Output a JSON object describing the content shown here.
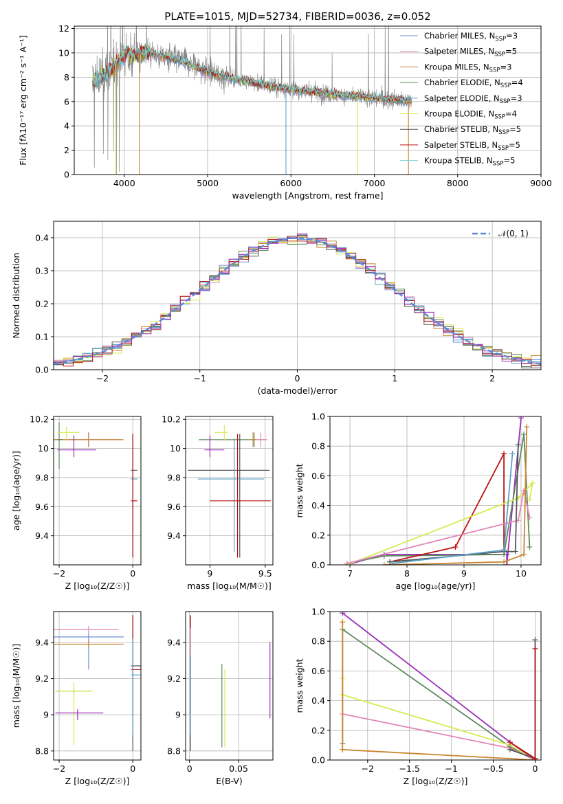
{
  "figure": {
    "title": "PLATE=1015, MJD=52734, FIBERID=0036, z=0.052"
  },
  "colors": {
    "data_spectrum": "#888888",
    "grid": "#b0b0b0",
    "normal_curve": "#5b8bd8",
    "models": [
      "#6c8fd6",
      "#e386b8",
      "#c8852e",
      "#5e8a5e",
      "#5aa2c8",
      "#d6ea4e",
      "#555555",
      "#bb1111",
      "#7fd6d6"
    ]
  },
  "chart_data": [
    {
      "id": "spectrum",
      "type": "line",
      "xlabel": "wavelength [Angstrom, rest frame]",
      "ylabel": "Flux [f$_\\lambda$10$^{-17}$ erg cm$^{-2}$ s$^{-1}$ A$^{-1}$]",
      "ylabel_display": "Flux [fλ10⁻¹⁷ erg cm⁻² s⁻¹ A⁻¹]",
      "xlim": [
        3400,
        9000
      ],
      "ylim": [
        0,
        12.2
      ],
      "xticks": [
        4000,
        5000,
        6000,
        7000,
        8000,
        9000
      ],
      "yticks": [
        0,
        2,
        4,
        6,
        8,
        10,
        12
      ],
      "grid": true,
      "legend": "top-right",
      "legend_entries": [
        {
          "label": "Chabrier MILES, N",
          "sub": "SSP",
          "tail": "=3"
        },
        {
          "label": "Salpeter MILES, N",
          "sub": "SSP",
          "tail": "=5"
        },
        {
          "label": "Kroupa MILES, N",
          "sub": "SSP",
          "tail": "=3"
        },
        {
          "label": "Chabrier ELODIE, N",
          "sub": "SSP",
          "tail": "=4"
        },
        {
          "label": "Salpeter ELODIE, N",
          "sub": "SSP",
          "tail": "=3"
        },
        {
          "label": "Kroupa ELODIE, N",
          "sub": "SSP",
          "tail": "=4"
        },
        {
          "label": "Chabrier STELIB, N",
          "sub": "SSP",
          "tail": "=5"
        },
        {
          "label": "Salpeter STELIB, N",
          "sub": "SSP",
          "tail": "=5"
        },
        {
          "label": "Kroupa STELIB, N",
          "sub": "SSP",
          "tail": "=5"
        }
      ],
      "data_spectrum_range": [
        3620,
        7450
      ],
      "model_continuum": {
        "x": [
          3620,
          3800,
          4000,
          4300,
          4700,
          5000,
          5500,
          6000,
          6500,
          7000,
          7450
        ],
        "y": [
          7.6,
          8.4,
          9.8,
          10.0,
          9.3,
          8.4,
          7.6,
          7.0,
          6.6,
          6.3,
          6.0
        ]
      },
      "model_cutoffs": [
        {
          "x": 3900,
          "model": 5
        },
        {
          "x": 4180,
          "model": 2
        },
        {
          "x": 5940,
          "model": 4
        },
        {
          "x": 6800,
          "model": 5
        },
        {
          "x": 7410,
          "model": 2
        }
      ]
    },
    {
      "id": "residuals",
      "type": "line",
      "xlabel": "(data-model)/error",
      "ylabel": "Normed distribution",
      "xlim": [
        -2.5,
        2.5
      ],
      "ylim": [
        0,
        0.45
      ],
      "xticks": [
        -2,
        -1,
        0,
        1,
        2
      ],
      "yticks": [
        0.0,
        0.1,
        0.2,
        0.3,
        0.4
      ],
      "grid": true,
      "legend": "top-right",
      "legend_label": "𝒩(0, 1)",
      "series_note": "step histograms, 9 models",
      "bins": 50
    },
    {
      "id": "age_vs_Z",
      "type": "scatter",
      "xlabel": "Z [log₁₀(Z/Z☉)]",
      "ylabel": "age  [log₁₀(age/yr)]",
      "xlim": [
        -2.15,
        0.22
      ],
      "ylim": [
        9.2,
        10.22
      ],
      "xticks": [
        -2,
        0
      ],
      "yticks": [
        9.4,
        9.6,
        9.8,
        10.0,
        10.2
      ],
      "grid": true,
      "points": [
        {
          "x": -1.2,
          "xerr": [
            0.98,
            0.9
          ],
          "y": 10.06,
          "yerr": [
            0.05,
            0.05
          ],
          "model": 0
        },
        {
          "x": -1.2,
          "xerr": [
            0.95,
            0.9
          ],
          "y": 10.06,
          "yerr": [
            0.05,
            0.05
          ],
          "model": 1
        },
        {
          "x": -1.2,
          "xerr": [
            0.95,
            0.95
          ],
          "y": 10.06,
          "yerr": [
            0.05,
            0.05
          ],
          "model": 2
        },
        {
          "x": -2.0,
          "xerr": [
            0.05,
            0.1
          ],
          "y": 10.06,
          "yerr": [
            0.2,
            0.12
          ],
          "model": 3
        },
        {
          "x": -1.8,
          "xerr": [
            0.25,
            0.35
          ],
          "y": 10.11,
          "yerr": [
            0.05,
            0.04
          ],
          "model": 5
        },
        {
          "x": -1.6,
          "xerr": [
            0.45,
            0.6
          ],
          "y": 9.99,
          "yerr": [
            0.05,
            0.1
          ],
          "model": 8
        },
        {
          "x": 0.0,
          "xerr": [
            0.05,
            0.12
          ],
          "y": 9.85,
          "yerr": [
            0.6,
            0.25
          ],
          "model": 6
        },
        {
          "x": 0.0,
          "xerr": [
            0.05,
            0.12
          ],
          "y": 9.79,
          "yerr": [
            0.5,
            0.28
          ],
          "model": 4
        },
        {
          "x": 0.0,
          "xerr": [
            0.05,
            0.12
          ],
          "y": 9.64,
          "yerr": [
            0.39,
            0.46
          ],
          "model": 7
        }
      ]
    },
    {
      "id": "age_vs_mass",
      "type": "scatter",
      "xlabel": "mass [log₁₀(M/M☉)]",
      "ylabel": "",
      "xlim": [
        8.78,
        9.57
      ],
      "ylim": [
        9.2,
        10.22
      ],
      "xticks": [
        9.0,
        9.5
      ],
      "yticks": [
        9.4,
        9.6,
        9.8,
        10.0,
        10.2
      ],
      "grid": true,
      "points": [
        {
          "x": 9.4,
          "xerr": [
            0.5,
            0.1
          ],
          "y": 10.06,
          "yerr": [
            0.05,
            0.05
          ],
          "model": 3
        },
        {
          "x": 9.46,
          "xerr": [
            0.05,
            0.06
          ],
          "y": 10.06,
          "yerr": [
            0.05,
            0.05
          ],
          "model": 1
        },
        {
          "x": 9.39,
          "xerr": [
            0.03,
            0.03
          ],
          "y": 10.06,
          "yerr": [
            0.05,
            0.05
          ],
          "model": 2
        },
        {
          "x": 9.13,
          "xerr": [
            0.09,
            0.03
          ],
          "y": 10.11,
          "yerr": [
            0.06,
            0.05
          ],
          "model": 5
        },
        {
          "x": 9.0,
          "xerr": [
            0.05,
            0.13
          ],
          "y": 9.99,
          "yerr": [
            0.05,
            0.1
          ],
          "model": 8
        },
        {
          "x": 9.27,
          "xerr": [
            0.47,
            0.27
          ],
          "y": 9.85,
          "yerr": [
            0.6,
            0.25
          ],
          "model": 6
        },
        {
          "x": 9.22,
          "xerr": [
            0.33,
            0.27
          ],
          "y": 9.79,
          "yerr": [
            0.5,
            0.28
          ],
          "model": 4
        },
        {
          "x": 9.25,
          "xerr": [
            0.25,
            0.3
          ],
          "y": 9.64,
          "yerr": [
            0.39,
            0.46
          ],
          "model": 7
        }
      ]
    },
    {
      "id": "massweight_vs_age",
      "type": "line",
      "xlabel": "age  [log₁₀(age/yr)]",
      "ylabel": "mass weight",
      "xlim": [
        6.65,
        10.35
      ],
      "ylim": [
        0,
        1.0
      ],
      "xticks": [
        7,
        8,
        9,
        10
      ],
      "yticks": [
        0.0,
        0.2,
        0.4,
        0.6,
        0.8,
        1.0
      ],
      "grid": true,
      "series": [
        {
          "model": 8,
          "x": [
            6.95,
            7.6,
            9.75,
            9.75,
            10.0
          ],
          "y": [
            0.0,
            0.07,
            0.07,
            0.0,
            0.99
          ]
        },
        {
          "model": 3,
          "x": [
            6.95,
            7.6,
            9.7,
            10.05,
            10.15
          ],
          "y": [
            0.01,
            0.06,
            0.07,
            0.88,
            0.12
          ]
        },
        {
          "model": 7,
          "x": [
            7.7,
            8.85,
            9.7,
            9.7
          ],
          "y": [
            0.02,
            0.12,
            0.75,
            0.1
          ]
        },
        {
          "model": 5,
          "x": [
            6.95,
            9.95,
            10.2,
            10.15
          ],
          "y": [
            0.0,
            0.45,
            0.55,
            0.44
          ]
        },
        {
          "model": 1,
          "x": [
            6.95,
            9.95,
            10.05,
            10.15
          ],
          "y": [
            0.01,
            0.3,
            0.5,
            0.32
          ]
        },
        {
          "model": 2,
          "x": [
            7.6,
            9.7,
            10.05,
            10.1
          ],
          "y": [
            0.0,
            0.02,
            0.07,
            0.93
          ]
        },
        {
          "model": 6,
          "x": [
            7.7,
            9.7,
            9.9,
            9.95
          ],
          "y": [
            0.02,
            0.09,
            0.09,
            0.81
          ]
        },
        {
          "model": 4,
          "x": [
            7.75,
            9.7,
            9.85
          ],
          "y": [
            0.01,
            0.1,
            0.75
          ]
        }
      ]
    },
    {
      "id": "mass_vs_Z",
      "type": "scatter",
      "xlabel": "Z [log₁₀(Z/Z☉)]",
      "ylabel": "mass [log₁₀(M/M☉)]",
      "xlim": [
        -2.15,
        0.22
      ],
      "ylim": [
        8.75,
        9.57
      ],
      "xticks": [
        -2,
        0
      ],
      "yticks": [
        8.8,
        9.0,
        9.2,
        9.4
      ],
      "grid": true,
      "points": [
        {
          "x": -1.2,
          "xerr": [
            0.95,
            0.8
          ],
          "y": 9.47,
          "yerr": [
            0.02,
            0.02
          ],
          "model": 1
        },
        {
          "x": -1.2,
          "xerr": [
            0.95,
            0.95
          ],
          "y": 9.43,
          "yerr": [
            0.18,
            0.02
          ],
          "model": 0
        },
        {
          "x": -1.2,
          "xerr": [
            0.95,
            0.95
          ],
          "y": 9.39,
          "yerr": [
            0.02,
            0.02
          ],
          "model": 2
        },
        {
          "x": -1.6,
          "xerr": [
            0.5,
            0.5
          ],
          "y": 9.13,
          "yerr": [
            0.02,
            0.02
          ],
          "model": 3
        },
        {
          "x": -1.6,
          "xerr": [
            0.5,
            0.5
          ],
          "y": 9.13,
          "yerr": [
            0.3,
            0.05
          ],
          "model": 5
        },
        {
          "x": -1.5,
          "xerr": [
            0.6,
            0.7
          ],
          "y": 9.01,
          "yerr": [
            0.04,
            0.02
          ],
          "model": 8
        },
        {
          "x": 0.0,
          "xerr": [
            0.05,
            0.25
          ],
          "y": 9.27,
          "yerr": [
            0.47,
            0.28
          ],
          "model": 6
        },
        {
          "x": 0.0,
          "xerr": [
            0.05,
            0.25
          ],
          "y": 9.25,
          "yerr": [
            0.25,
            0.3
          ],
          "model": 7
        },
        {
          "x": 0.0,
          "xerr": [
            0.05,
            0.25
          ],
          "y": 9.22,
          "yerr": [
            0.33,
            0.2
          ],
          "model": 4
        }
      ]
    },
    {
      "id": "mass_vs_EBV",
      "type": "scatter",
      "xlabel": "E(B-V)",
      "ylabel": "",
      "xlim": [
        -0.004,
        0.085
      ],
      "ylim": [
        8.75,
        9.57
      ],
      "xticks": [
        0.0,
        0.05
      ],
      "yticks": [
        8.8,
        9.0,
        9.2,
        9.4
      ],
      "grid": true,
      "points": [
        {
          "x": 0.001,
          "y": 9.4,
          "yerr": [
            0.6,
            0.14
          ],
          "model": 6
        },
        {
          "x": 0.001,
          "y": 9.25,
          "yerr": [
            0.25,
            0.3
          ],
          "model": 7
        },
        {
          "x": 0.001,
          "y": 9.22,
          "yerr": [
            0.33,
            0.2
          ],
          "model": 4
        },
        {
          "x": 0.001,
          "y": 9.43,
          "yerr": [
            0.1,
            0.05
          ],
          "model": 1
        },
        {
          "x": 0.033,
          "y": 9.1,
          "yerr": [
            0.28,
            0.18
          ],
          "model": 3
        },
        {
          "x": 0.036,
          "y": 9.05,
          "yerr": [
            0.23,
            0.2
          ],
          "model": 5
        },
        {
          "x": 0.082,
          "y": 9.19,
          "yerr": [
            0.21,
            0.21
          ],
          "model": 8
        }
      ]
    },
    {
      "id": "massweight_vs_Z",
      "type": "line",
      "xlabel": "Z [log₁₀(Z/Z☉)]",
      "ylabel": "mass weight",
      "xlim": [
        -2.45,
        0.07
      ],
      "ylim": [
        0,
        1.0
      ],
      "xticks": [
        -2.0,
        -1.5,
        -1.0,
        -0.5,
        0.0
      ],
      "yticks": [
        0.0,
        0.2,
        0.4,
        0.6,
        0.8,
        1.0
      ],
      "grid": true,
      "series": [
        {
          "model": 8,
          "x": [
            -2.3,
            -0.3,
            0.0
          ],
          "y": [
            0.99,
            0.12,
            0.0
          ]
        },
        {
          "model": 3,
          "x": [
            -2.3,
            -2.3,
            -2.3,
            -0.3,
            0.0
          ],
          "y": [
            0.11,
            0.88,
            0.88,
            0.09,
            0.0
          ]
        },
        {
          "model": 5,
          "x": [
            -2.3,
            -2.3,
            -0.3,
            0.0
          ],
          "y": [
            0.55,
            0.44,
            0.1,
            0.0
          ]
        },
        {
          "model": 1,
          "x": [
            -2.3,
            -0.3,
            0.0
          ],
          "y": [
            0.31,
            0.08,
            0.0
          ]
        },
        {
          "model": 2,
          "x": [
            -2.3,
            -2.3,
            -2.3,
            0.0
          ],
          "y": [
            0.93,
            0.07,
            0.07,
            0.0
          ]
        },
        {
          "model": 6,
          "x": [
            -0.3,
            0.0,
            0.0
          ],
          "y": [
            0.07,
            0.01,
            0.81
          ]
        },
        {
          "model": 4,
          "x": [
            0.0,
            0.0
          ],
          "y": [
            0.01,
            0.75
          ]
        },
        {
          "model": 7,
          "x": [
            -0.3,
            0.0,
            0.0
          ],
          "y": [
            0.12,
            0.01,
            0.75
          ]
        }
      ]
    }
  ]
}
